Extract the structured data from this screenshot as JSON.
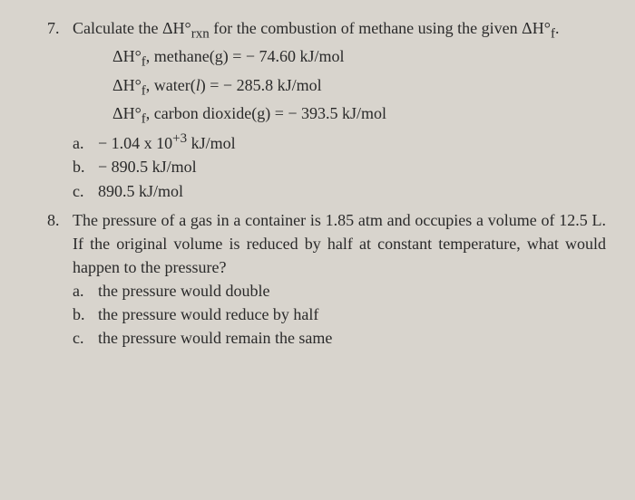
{
  "q7": {
    "number": "7.",
    "prompt_before": "Calculate the ΔH°",
    "prompt_sub1": "rxn",
    "prompt_mid": " for the combustion of methane using the given ΔH°",
    "prompt_sub2": "f",
    "prompt_end": ".",
    "data1_pre": "ΔH°",
    "data1_sub": "f",
    "data1_post": ", methane(g) = − 74.60 kJ/mol",
    "data2_pre": "ΔH°",
    "data2_sub": "f",
    "data2_post": ", water(",
    "data2_ital": "l",
    "data2_post2": ") = − 285.8 kJ/mol",
    "data3_pre": "ΔH°",
    "data3_sub": "f",
    "data3_post": ", carbon dioxide(g) = − 393.5 kJ/mol",
    "opt_a_letter": "a.",
    "opt_a_pre": "− 1.04 x 10",
    "opt_a_sup": "+3",
    "opt_a_post": " kJ/mol",
    "opt_b_letter": "b.",
    "opt_b_text": "− 890.5 kJ/mol",
    "opt_c_letter": "c.",
    "opt_c_text": "890.5 kJ/mol"
  },
  "q8": {
    "number": "8.",
    "prompt": "The pressure of a gas in a container is 1.85 atm and occupies a volume of 12.5 L. If the original volume is reduced by half at constant temperature, what would happen to the pressure?",
    "opt_a_letter": "a.",
    "opt_a_text": "the pressure would double",
    "opt_b_letter": "b.",
    "opt_b_text": "the pressure would reduce by half",
    "opt_c_letter": "c.",
    "opt_c_text": "the pressure would remain the same"
  }
}
